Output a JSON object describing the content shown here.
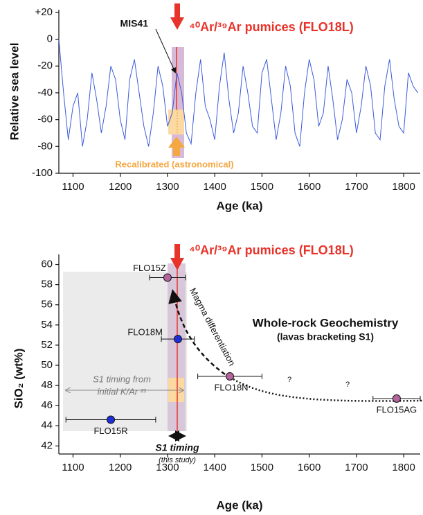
{
  "chart_data": [
    {
      "type": "line",
      "ylabel": "Relative sea level",
      "xlabel": "Age (ka)",
      "color": "#3b5bdb",
      "x": [
        1070,
        1080,
        1090,
        1100,
        1110,
        1120,
        1130,
        1140,
        1150,
        1160,
        1170,
        1180,
        1190,
        1200,
        1210,
        1220,
        1230,
        1240,
        1250,
        1260,
        1270,
        1280,
        1290,
        1300,
        1310,
        1320,
        1330,
        1340,
        1350,
        1360,
        1370,
        1380,
        1390,
        1400,
        1410,
        1420,
        1430,
        1440,
        1450,
        1460,
        1470,
        1480,
        1490,
        1500,
        1510,
        1520,
        1530,
        1540,
        1550,
        1560,
        1570,
        1580,
        1590,
        1600,
        1610,
        1620,
        1630,
        1640,
        1650,
        1660,
        1670,
        1680,
        1690,
        1700,
        1710,
        1720,
        1730,
        1740,
        1750,
        1760,
        1770,
        1780,
        1790,
        1800,
        1810,
        1820,
        1830
      ],
      "values": [
        0,
        -40,
        -75,
        -50,
        -40,
        -80,
        -60,
        -25,
        -45,
        -70,
        -50,
        -20,
        -30,
        -60,
        -75,
        -30,
        -15,
        -40,
        -65,
        -80,
        -55,
        -20,
        -35,
        -65,
        -55,
        -25,
        -40,
        -70,
        -78,
        -40,
        -15,
        -50,
        -60,
        -75,
        -35,
        -10,
        -45,
        -70,
        -55,
        -20,
        -40,
        -65,
        -70,
        -25,
        -15,
        -45,
        -75,
        -55,
        -20,
        -35,
        -70,
        -80,
        -40,
        -15,
        -30,
        -65,
        -55,
        -20,
        -45,
        -75,
        -60,
        -30,
        -40,
        -70,
        -50,
        -20,
        -35,
        -70,
        -75,
        -35,
        -15,
        -45,
        -65,
        -70,
        -25,
        -35,
        -40
      ],
      "xlim": [
        1070,
        1835
      ],
      "ylim": [
        -100,
        22
      ],
      "xticks": [
        1100,
        1200,
        1300,
        1400,
        1500,
        1600,
        1700,
        1800
      ],
      "yticks": [
        {
          "value": 20,
          "label": "+20"
        },
        0,
        -20,
        -40,
        -60,
        -80,
        -100
      ],
      "annotations": [
        "MIS41",
        "⁴⁰Ar/³⁹Ar pumices (FLO18L)",
        "Recalibrated (astronomical)"
      ]
    },
    {
      "type": "scatter",
      "ylabel": "SiO₂ (wt%)",
      "xlabel": "Age (ka)",
      "xlim": [
        1070,
        1835
      ],
      "ylim": [
        41.2,
        61
      ],
      "xticks": [
        1100,
        1200,
        1300,
        1400,
        1500,
        1600,
        1700,
        1800
      ],
      "yticks": [
        42,
        44,
        46,
        48,
        50,
        52,
        54,
        56,
        58,
        60
      ],
      "points": [
        {
          "label": "FLO15Z",
          "x": 1300,
          "y": 58.7,
          "xerr": 38,
          "color": "#b5659e"
        },
        {
          "label": "FLO18M",
          "x": 1322,
          "y": 52.6,
          "xerr": 35,
          "color": "#1f2fd6"
        },
        {
          "label": "FLO18N",
          "x": 1432,
          "y": 48.9,
          "xerr": 68,
          "color": "#b5659e"
        },
        {
          "label": "FLO15AG",
          "x": 1785,
          "y": 46.7,
          "xerr": 50,
          "color": "#b5659e"
        },
        {
          "label": "FLO15R",
          "x": 1180,
          "y": 44.6,
          "xerr": 95,
          "color": "#1f2fd6"
        }
      ],
      "annotations": [
        "⁴⁰Ar/³⁹Ar pumices (FLO18L)",
        "Whole-rock Geochemistry",
        "(lavas bracketing S1)",
        "Magma differentiation",
        "S1 timing from",
        "initial K/Ar ²¹",
        "S1 timing",
        "(this study)",
        "?",
        "?"
      ]
    }
  ]
}
